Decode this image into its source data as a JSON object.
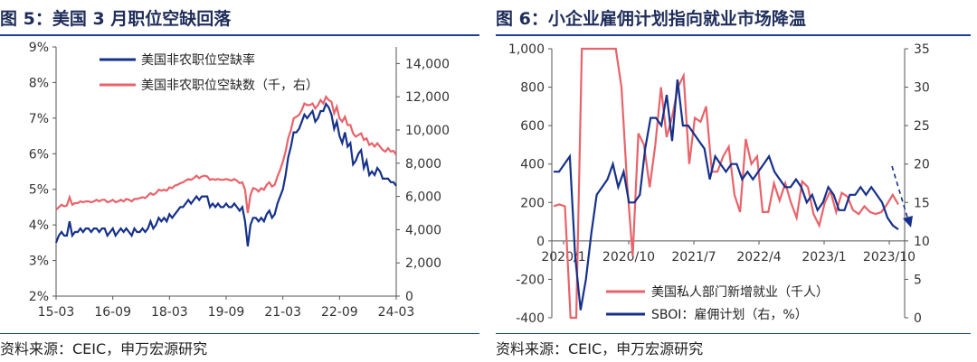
{
  "left": {
    "title": "图 5：美国 3 月职位空缺回落",
    "source": "资料来源：CEIC，申万宏源研究",
    "chart_data": {
      "type": "line",
      "x_ticks": [
        "15-03",
        "16-09",
        "18-03",
        "19-09",
        "21-03",
        "22-09",
        "24-03"
      ],
      "y_left_ticks": [
        "2%",
        "3%",
        "4%",
        "5%",
        "6%",
        "7%",
        "8%",
        "9%"
      ],
      "y_left_range": [
        2,
        9
      ],
      "y_right_ticks": [
        "0",
        "2,000",
        "4,000",
        "6,000",
        "8,000",
        "10,000",
        "12,000",
        "14,000"
      ],
      "y_right_range": [
        0,
        15000
      ],
      "legend": [
        "美国非农职位空缺率",
        "美国非农职位空缺数（千，右）"
      ],
      "series": [
        {
          "name": "美国非农职位空缺率",
          "axis": "left",
          "color": "#15318a",
          "values": [
            3.5,
            3.7,
            3.8,
            3.7,
            3.7,
            4.1,
            3.7,
            3.8,
            3.8,
            3.9,
            3.8,
            3.9,
            3.9,
            3.8,
            3.9,
            3.9,
            3.8,
            3.9,
            3.9,
            3.7,
            3.8,
            3.9,
            3.7,
            3.8,
            3.9,
            3.8,
            3.9,
            3.8,
            3.7,
            3.9,
            3.8,
            3.8,
            3.9,
            3.8,
            3.9,
            4.1,
            3.9,
            4.0,
            4.2,
            4.1,
            4.2,
            4.1,
            4.3,
            4.2,
            4.3,
            4.4,
            4.5,
            4.5,
            4.6,
            4.7,
            4.6,
            4.7,
            4.8,
            4.7,
            4.8,
            4.8,
            4.8,
            4.5,
            4.6,
            4.5,
            4.6,
            4.5,
            4.5,
            4.6,
            4.5,
            4.5,
            4.6,
            4.5,
            4.4,
            4.5,
            4.1,
            3.4,
            4.0,
            4.2,
            4.2,
            4.1,
            4.2,
            4.1,
            4.3,
            4.4,
            4.2,
            4.3,
            4.6,
            4.8,
            5.0,
            5.4,
            5.9,
            6.2,
            6.6,
            6.6,
            6.7,
            6.9,
            7.1,
            7.0,
            7.1,
            7.2,
            6.9,
            7.0,
            7.2,
            7.2,
            7.4,
            7.3,
            7.1,
            6.7,
            6.9,
            6.5,
            6.3,
            6.6,
            6.2,
            6.3,
            5.7,
            5.8,
            6.0,
            6.1,
            5.6,
            5.8,
            5.4,
            5.5,
            5.4,
            5.6,
            5.5,
            5.3,
            5.3,
            5.3,
            5.2,
            5.2,
            5.1
          ]
        },
        {
          "name": "美国非农职位空缺数（千，右）",
          "axis": "right",
          "color": "#e8636a",
          "values": [
            5200,
            5350,
            5500,
            5400,
            5450,
            5950,
            5500,
            5600,
            5600,
            5700,
            5650,
            5700,
            5700,
            5650,
            5700,
            5800,
            5700,
            5800,
            5800,
            5650,
            5700,
            5800,
            5650,
            5700,
            5800,
            5700,
            5850,
            5800,
            5700,
            5850,
            5850,
            5900,
            5950,
            5900,
            6050,
            6200,
            6100,
            6200,
            6400,
            6350,
            6400,
            6350,
            6550,
            6500,
            6650,
            6700,
            6800,
            6850,
            6950,
            7050,
            7000,
            7100,
            7250,
            7100,
            7200,
            7250,
            7200,
            7000,
            7050,
            7000,
            7050,
            7000,
            7000,
            7050,
            7000,
            6950,
            7050,
            6950,
            6800,
            6850,
            6400,
            5000,
            6100,
            6500,
            6450,
            6300,
            6500,
            6400,
            6700,
            6850,
            6600,
            6700,
            7200,
            7600,
            8100,
            8700,
            9500,
            10000,
            10700,
            10800,
            10900,
            11200,
            11600,
            11500,
            11500,
            11600,
            11300,
            11500,
            11800,
            11600,
            12000,
            11800,
            11700,
            11000,
            11400,
            10700,
            10500,
            10800,
            10300,
            10300,
            9800,
            9600,
            9700,
            9800,
            9400,
            9500,
            9100,
            9200,
            9000,
            9200,
            9000,
            8800,
            8700,
            8900,
            8700,
            8750,
            8500
          ]
        }
      ]
    }
  },
  "right": {
    "title": "图 6：小企业雇佣计划指向就业市场降温",
    "source": "资料来源：CEIC，申万宏源研究",
    "chart_data": {
      "type": "line",
      "x_ticks": [
        "2020/1",
        "2020/10",
        "2021/7",
        "2022/4",
        "2023/1",
        "2023/10"
      ],
      "y_left_ticks": [
        "-400",
        "-200",
        "0",
        "200",
        "400",
        "600",
        "800",
        "1,000"
      ],
      "y_left_range": [
        -400,
        1000
      ],
      "y_right_ticks": [
        "0",
        "5",
        "10",
        "15",
        "20",
        "25",
        "30",
        "35"
      ],
      "y_right_range": [
        0,
        35
      ],
      "legend": [
        "美国私人部门新增就业（千人）",
        "SBOI：雇佣计划（右，%）"
      ],
      "series": [
        {
          "name": "美国私人部门新增就业（千人）",
          "axis": "left",
          "color": "#e8636a",
          "values": [
            180,
            190,
            180,
            -500,
            -500,
            1000,
            1000,
            1000,
            1000,
            1000,
            1000,
            1000,
            800,
            300,
            -80,
            560,
            500,
            280,
            500,
            800,
            540,
            650,
            800,
            860,
            400,
            640,
            620,
            700,
            360,
            360,
            440,
            490,
            240,
            150,
            530,
            400,
            440,
            150,
            150,
            300,
            210,
            300,
            200,
            120,
            310,
            280,
            140,
            80,
            200,
            260,
            150,
            250,
            230,
            160,
            140,
            180,
            150,
            140,
            150,
            190,
            240,
            190
          ]
        },
        {
          "name": "SBOI：雇佣计划（右，%）",
          "axis": "right",
          "color": "#15318a",
          "values": [
            19,
            19,
            20,
            21,
            8,
            1,
            5,
            11,
            16,
            17,
            18,
            20,
            17,
            19,
            15,
            15,
            16,
            22,
            26,
            26,
            25,
            29,
            23,
            31,
            25,
            25,
            24,
            23,
            22,
            18,
            21,
            20,
            19,
            20,
            20,
            18,
            19,
            18,
            19,
            20,
            21,
            19,
            18,
            17,
            17,
            18,
            17,
            15,
            16,
            14,
            15,
            17,
            16,
            14,
            14,
            16,
            16,
            17,
            16,
            17,
            16,
            15,
            13,
            12,
            11.5
          ]
        }
      ],
      "annotation": "dashed arrow pointing down"
    }
  }
}
